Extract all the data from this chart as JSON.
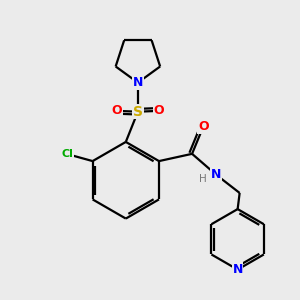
{
  "background_color": "#ebebeb",
  "atom_colors": {
    "C": "#000000",
    "N": "#0000ff",
    "O": "#ff0000",
    "S": "#ccaa00",
    "Cl": "#00aa00",
    "H": "#777777"
  },
  "bond_lw": 1.6,
  "font_size_atom": 9,
  "font_size_h": 7.5
}
